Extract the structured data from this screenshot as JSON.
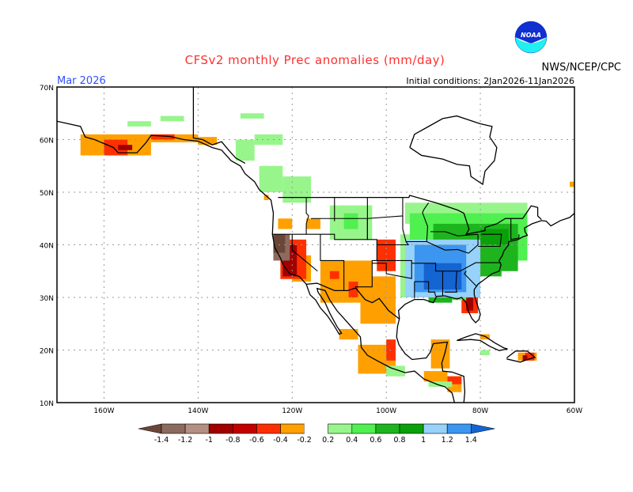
{
  "header": {
    "title": "CFSv2 monthly Prec anomalies (mm/day)",
    "agency": "NWS/NCEP/CPC",
    "logo_text": "NOAA",
    "month": "Mar 2026",
    "initial_conditions": "Initial conditions: 2Jan2026-11Jan2026"
  },
  "colors": {
    "title": "#ff3030",
    "month": "#3050ff",
    "logo_top": "#1030d0",
    "logo_bottom": "#20f0f0"
  },
  "axes": {
    "lat_labels": [
      "70N",
      "60N",
      "50N",
      "40N",
      "30N",
      "20N",
      "10N"
    ],
    "lat_values": [
      70,
      60,
      50,
      40,
      30,
      20,
      10
    ],
    "lon_labels": [
      "160W",
      "140W",
      "120W",
      "100W",
      "80W",
      "60W"
    ],
    "lon_values": [
      -160,
      -140,
      -120,
      -100,
      -80,
      -60
    ],
    "lon_range": [
      -170,
      -60
    ],
    "lat_range": [
      10,
      70
    ]
  },
  "colorbar": {
    "labels": [
      "-1.4",
      "-1.2",
      "-1",
      "-0.8",
      "-0.6",
      "-0.4",
      "-0.2",
      "0.2",
      "0.4",
      "0.6",
      "0.8",
      "1",
      "1.2",
      "1.4"
    ],
    "below_color": "#6b4638",
    "above_color": "#1464d2",
    "box_colors": [
      "#8c6a5d",
      "#b48f84",
      "#a00000",
      "#c20000",
      "#ff3000",
      "#ffa000",
      "#ffffff",
      "#98f58c",
      "#50f050",
      "#1eb41e",
      "#0aa00a",
      "#96d2fa",
      "#3c96f0"
    ]
  },
  "anomalies": [
    [
      -114,
      29,
      -103,
      37,
      -0.3
    ],
    [
      -105.5,
      25,
      -98,
      34,
      -0.3
    ],
    [
      -117,
      43,
      -114,
      45,
      -0.3
    ],
    [
      -123,
      43,
      -120,
      45,
      -0.3
    ],
    [
      -120,
      33,
      -116,
      38,
      -0.3
    ],
    [
      -106,
      15.5,
      -98,
      21,
      -0.3
    ],
    [
      -110,
      22,
      -106,
      24,
      -0.3
    ],
    [
      -90.5,
      16.5,
      -86.5,
      22,
      -0.3
    ],
    [
      -92,
      14,
      -87,
      16,
      -0.3
    ],
    [
      -87,
      12,
      -84,
      15,
      -0.3
    ],
    [
      -80,
      22,
      -78,
      23,
      -0.3
    ],
    [
      -72,
      18,
      -68,
      19.5,
      -0.3
    ],
    [
      -165,
      57,
      -150,
      61,
      -0.3
    ],
    [
      -150,
      59.5,
      -140,
      61,
      -0.3
    ],
    [
      -140,
      59,
      -136,
      60.5,
      -0.3
    ],
    [
      -126,
      48.5,
      -125,
      49.5,
      -0.3
    ],
    [
      -61,
      51,
      -60,
      52,
      -0.3
    ],
    [
      -122.5,
      33.5,
      -117,
      41,
      -0.5
    ],
    [
      -102,
      35,
      -98,
      41,
      -0.5
    ],
    [
      -108,
      30,
      -106,
      33,
      -0.5
    ],
    [
      -112,
      33.5,
      -110,
      35,
      -0.5
    ],
    [
      -100,
      18,
      -98,
      22,
      -0.5
    ],
    [
      -84,
      27,
      -80.5,
      31,
      -0.5
    ],
    [
      -87,
      13.5,
      -84,
      15,
      -0.5
    ],
    [
      -70.5,
      18,
      -68.5,
      19.5,
      -0.5
    ],
    [
      -160,
      57,
      -155,
      60,
      -0.5
    ],
    [
      -150,
      60,
      -145,
      61,
      -0.5
    ],
    [
      -122,
      34,
      -119,
      40,
      -0.9
    ],
    [
      -83,
      27.5,
      -81.5,
      30,
      -0.9
    ],
    [
      -157,
      58,
      -154,
      59,
      -0.9
    ],
    [
      -71,
      18,
      -70,
      19,
      -0.9
    ],
    [
      -124,
      37,
      -120.5,
      42,
      -1.3
    ],
    [
      -124,
      38.5,
      -121.5,
      42,
      -1.5
    ],
    [
      -132,
      56,
      -128,
      60,
      0.3
    ],
    [
      -127,
      50,
      -122,
      55,
      0.3
    ],
    [
      -122,
      48,
      -116,
      53,
      0.3
    ],
    [
      -128,
      59,
      -122,
      61,
      0.3
    ],
    [
      -155,
      62.5,
      -150,
      63.5,
      0.3
    ],
    [
      -148,
      63.5,
      -143,
      64.5,
      0.3
    ],
    [
      -131,
      64,
      -126,
      65,
      0.3
    ],
    [
      -112,
      41,
      -103,
      47.5,
      0.3
    ],
    [
      -96,
      44,
      -70,
      48,
      0.3
    ],
    [
      -97,
      30,
      -93,
      42,
      0.3
    ],
    [
      -100,
      15,
      -96,
      17,
      0.3
    ],
    [
      -91,
      13,
      -86,
      14,
      0.3
    ],
    [
      -80,
      19,
      -78,
      20,
      0.3
    ],
    [
      -95,
      37,
      -70,
      46,
      0.5
    ],
    [
      -109,
      43,
      -106,
      46,
      0.5
    ],
    [
      -86,
      29.5,
      -83,
      31,
      0.5
    ],
    [
      -90,
      35,
      -72,
      44,
      0.7
    ],
    [
      -95,
      33,
      -93,
      40,
      0.7
    ],
    [
      -80,
      34,
      -75.5,
      37,
      0.7
    ],
    [
      -91,
      29,
      -86,
      31,
      0.7
    ],
    [
      -80,
      40,
      -74,
      43,
      0.9
    ],
    [
      -96,
      30,
      -80,
      41,
      1.1
    ],
    [
      -94,
      31,
      -83,
      40,
      1.3
    ],
    [
      -92,
      31.5,
      -84,
      36.5,
      1.5
    ]
  ]
}
